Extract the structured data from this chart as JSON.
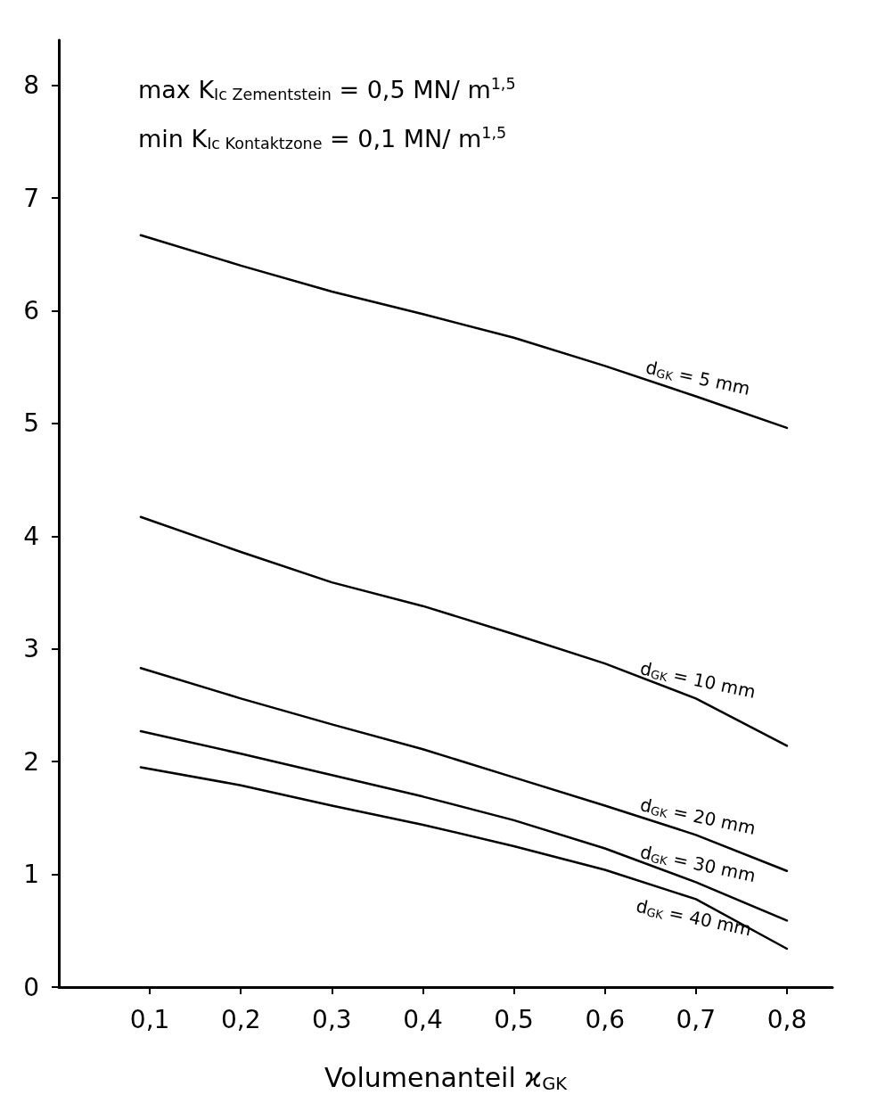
{
  "chart_data": {
    "type": "line",
    "xlabel": "Volumenanteil ϰ$_{GK}$",
    "annotations": [
      "max K$_{Ic Zementstein}$ = 0,5 MN/ m$^{1,5}$",
      "min K$_{Ic Kontaktzone}$ = 0,1 MN/ m$^{1,5}$"
    ],
    "x": [
      0.09,
      0.2,
      0.3,
      0.4,
      0.5,
      0.6,
      0.7,
      0.8
    ],
    "series": [
      {
        "name": "d$_{GK}$ = 5 mm",
        "color": "#000000",
        "values": [
          6.67,
          6.4,
          6.17,
          5.97,
          5.76,
          5.51,
          5.24,
          4.96
        ]
      },
      {
        "name": "d$_{GK}$ = 10 mm",
        "color": "#000000",
        "values": [
          4.17,
          3.86,
          3.59,
          3.38,
          3.13,
          2.87,
          2.56,
          2.14
        ]
      },
      {
        "name": "d$_{GK}$ = 20 mm",
        "color": "#000000",
        "values": [
          2.83,
          2.56,
          2.33,
          2.11,
          1.86,
          1.61,
          1.35,
          1.03
        ]
      },
      {
        "name": "d$_{GK}$ = 30 mm",
        "color": "#000000",
        "values": [
          2.27,
          2.07,
          1.88,
          1.69,
          1.48,
          1.23,
          0.93,
          0.59
        ]
      },
      {
        "name": "d$_{GK}$ = 40 mm",
        "color": "#000000",
        "values": [
          1.95,
          1.79,
          1.61,
          1.44,
          1.25,
          1.04,
          0.78,
          0.34
        ]
      }
    ],
    "xlim": [
      0,
      0.85
    ],
    "xticks": [
      {
        "value": 0.1,
        "label": "0,1"
      },
      {
        "value": 0.2,
        "label": "0,2"
      },
      {
        "value": 0.3,
        "label": "0,3"
      },
      {
        "value": 0.4,
        "label": "0,4"
      },
      {
        "value": 0.5,
        "label": "0,5"
      },
      {
        "value": 0.6,
        "label": "0,6"
      },
      {
        "value": 0.7,
        "label": "0,7"
      },
      {
        "value": 0.8,
        "label": "0,8"
      }
    ],
    "ylim": [
      0,
      8.4
    ],
    "yticks": [
      0,
      1,
      2,
      3,
      4,
      5,
      6,
      7,
      8
    ],
    "grid": false,
    "legend": false,
    "marker": "none",
    "line_style": "solid"
  }
}
